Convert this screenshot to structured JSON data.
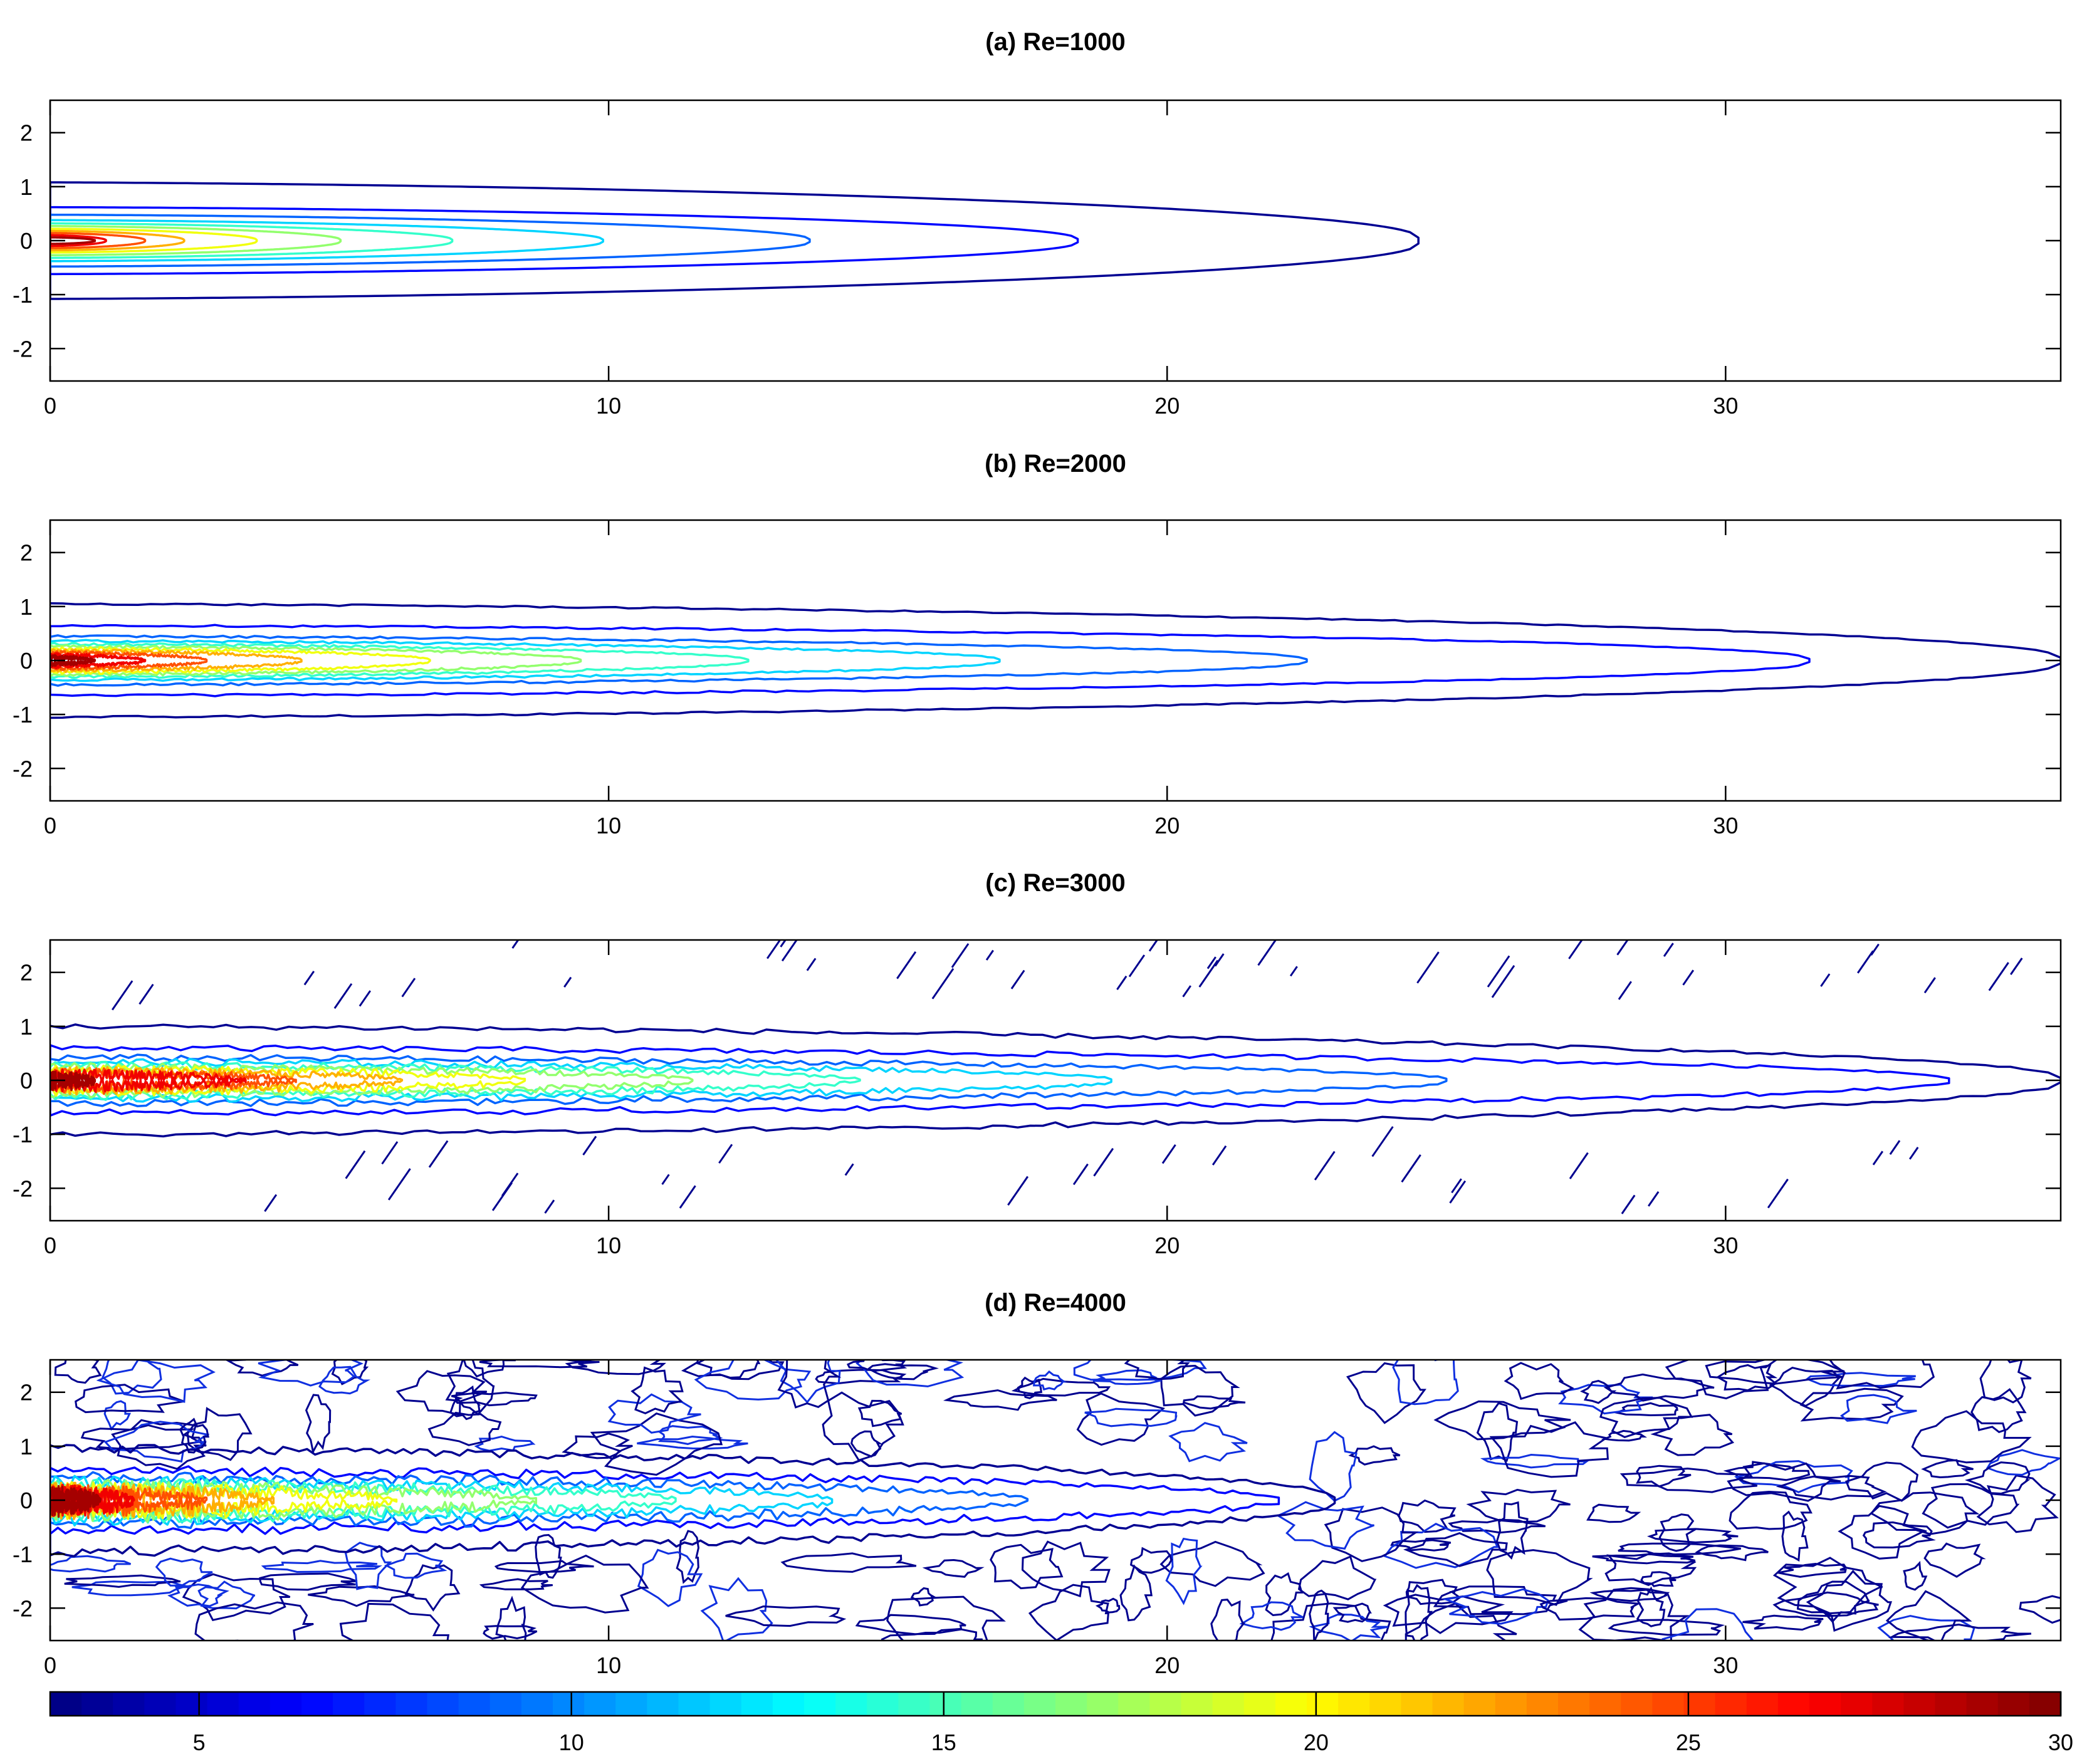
{
  "chart_data": {
    "type": "contour",
    "panels": [
      {
        "title": "(a) Re=1000",
        "xlim": [
          0,
          36
        ],
        "ylim": [
          -2.6,
          2.6
        ],
        "xticks": [
          0,
          10,
          20,
          30
        ],
        "yticks": [
          2,
          1,
          0,
          -1,
          -2
        ],
        "contours": [
          {
            "level": 3.5,
            "half_width": 1.08,
            "extent_x": 24.5
          },
          {
            "level": 6.5,
            "half_width": 0.62,
            "extent_x": 18.4
          },
          {
            "level": 9.0,
            "half_width": 0.48,
            "extent_x": 13.6
          },
          {
            "level": 12.0,
            "half_width": 0.38,
            "extent_x": 9.9
          },
          {
            "level": 14.5,
            "half_width": 0.32,
            "extent_x": 7.2
          },
          {
            "level": 17.0,
            "half_width": 0.27,
            "extent_x": 5.2
          },
          {
            "level": 19.5,
            "half_width": 0.22,
            "extent_x": 3.7
          },
          {
            "level": 22.0,
            "half_width": 0.18,
            "extent_x": 2.4
          },
          {
            "level": 24.5,
            "half_width": 0.14,
            "extent_x": 1.7
          },
          {
            "level": 27.0,
            "half_width": 0.1,
            "extent_x": 1.0
          },
          {
            "level": 29.0,
            "half_width": 0.06,
            "extent_x": 0.8
          }
        ]
      },
      {
        "title": "(b) Re=2000",
        "xlim": [
          0,
          36
        ],
        "ylim": [
          -2.6,
          2.6
        ],
        "xticks": [
          0,
          10,
          20,
          30
        ],
        "yticks": [
          2,
          1,
          0,
          -1,
          -2
        ],
        "contours": [
          {
            "level": 3.5,
            "half_width": 1.05,
            "extent_x": 36.0
          },
          {
            "level": 6.5,
            "half_width": 0.65,
            "extent_x": 31.5
          },
          {
            "level": 9.0,
            "half_width": 0.45,
            "extent_x": 22.5
          },
          {
            "level": 12.0,
            "half_width": 0.36,
            "extent_x": 17.0
          },
          {
            "level": 14.5,
            "half_width": 0.3,
            "extent_x": 12.5
          },
          {
            "level": 17.0,
            "half_width": 0.26,
            "extent_x": 9.5
          },
          {
            "level": 19.5,
            "half_width": 0.22,
            "extent_x": 6.8
          },
          {
            "level": 22.0,
            "half_width": 0.18,
            "extent_x": 4.5
          },
          {
            "level": 24.5,
            "half_width": 0.14,
            "extent_x": 2.8
          },
          {
            "level": 27.0,
            "half_width": 0.1,
            "extent_x": 1.7
          },
          {
            "level": 29.0,
            "half_width": 0.06,
            "extent_x": 0.8
          }
        ]
      },
      {
        "title": "(c) Re=3000",
        "xlim": [
          0,
          36
        ],
        "ylim": [
          -2.6,
          2.6
        ],
        "xticks": [
          0,
          10,
          20,
          30
        ],
        "yticks": [
          2,
          1,
          0,
          -1,
          -2
        ],
        "contours": [
          {
            "level": 3.5,
            "half_width": 1.0,
            "extent_x": 36.0
          },
          {
            "level": 6.5,
            "half_width": 0.6,
            "extent_x": 34.0
          },
          {
            "level": 9.0,
            "half_width": 0.42,
            "extent_x": 25.0
          },
          {
            "level": 12.0,
            "half_width": 0.34,
            "extent_x": 19.0
          },
          {
            "level": 14.5,
            "half_width": 0.28,
            "extent_x": 14.5
          },
          {
            "level": 17.0,
            "half_width": 0.24,
            "extent_x": 11.5
          },
          {
            "level": 19.5,
            "half_width": 0.2,
            "extent_x": 8.5
          },
          {
            "level": 22.0,
            "half_width": 0.17,
            "extent_x": 6.3
          },
          {
            "level": 24.5,
            "half_width": 0.13,
            "extent_x": 4.4
          },
          {
            "level": 27.0,
            "half_width": 0.1,
            "extent_x": 3.5
          },
          {
            "level": 29.0,
            "half_width": 0.06,
            "extent_x": 0.8
          }
        ]
      },
      {
        "title": "(d) Re=4000",
        "xlim": [
          0,
          36
        ],
        "ylim": [
          -2.6,
          2.6
        ],
        "xticks": [
          0,
          10,
          20,
          30
        ],
        "yticks": [
          2,
          1,
          0,
          -1,
          -2
        ],
        "contours": [
          {
            "level": 3.5,
            "half_width": 0.95,
            "extent_x": 23.0
          },
          {
            "level": 6.5,
            "half_width": 0.55,
            "extent_x": 22.0
          },
          {
            "level": 9.0,
            "half_width": 0.42,
            "extent_x": 17.5
          },
          {
            "level": 12.0,
            "half_width": 0.34,
            "extent_x": 14.0
          },
          {
            "level": 14.5,
            "half_width": 0.28,
            "extent_x": 11.2
          },
          {
            "level": 17.0,
            "half_width": 0.24,
            "extent_x": 8.7
          },
          {
            "level": 19.5,
            "half_width": 0.2,
            "extent_x": 6.2
          },
          {
            "level": 22.0,
            "half_width": 0.17,
            "extent_x": 4.0
          },
          {
            "level": 24.5,
            "half_width": 0.13,
            "extent_x": 2.8
          },
          {
            "level": 27.0,
            "half_width": 0.1,
            "extent_x": 1.5
          },
          {
            "level": 29.0,
            "half_width": 0.06,
            "extent_x": 0.9
          }
        ]
      }
    ],
    "colorbar": {
      "range": [
        3,
        30
      ],
      "ticks": [
        5,
        10,
        15,
        20,
        25,
        30
      ],
      "colormap": "jet"
    }
  }
}
